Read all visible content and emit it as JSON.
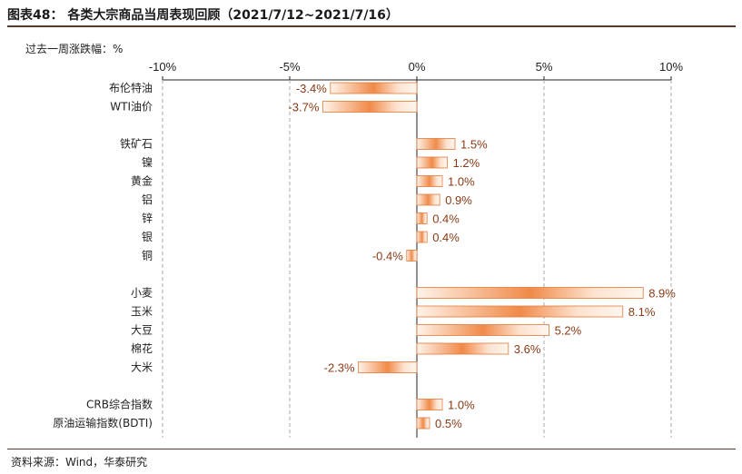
{
  "chart_data": {
    "type": "bar",
    "orientation": "horizontal",
    "title": "图表48： 各类大宗商品当周表现回顾（2021/7/12~2021/7/16）",
    "ylabel": "过去一周涨跌幅：%",
    "xlim": [
      -10,
      10
    ],
    "xticks": [
      -10,
      -5,
      0,
      5,
      10
    ],
    "xtick_labels": [
      "-10%",
      "-5%",
      "0%",
      "5%",
      "10%"
    ],
    "grid": "vertical-dashed",
    "rows": [
      {
        "label": "布伦特油",
        "value": -3.4,
        "value_label": "-3.4%"
      },
      {
        "label": "WTI油价",
        "value": -3.7,
        "value_label": "-3.7%"
      },
      null,
      {
        "label": "铁矿石",
        "value": 1.5,
        "value_label": "1.5%"
      },
      {
        "label": "镍",
        "value": 1.2,
        "value_label": "1.2%"
      },
      {
        "label": "黄金",
        "value": 1.0,
        "value_label": "1.0%"
      },
      {
        "label": "铝",
        "value": 0.9,
        "value_label": "0.9%"
      },
      {
        "label": "锌",
        "value": 0.4,
        "value_label": "0.4%"
      },
      {
        "label": "银",
        "value": 0.4,
        "value_label": "0.4%"
      },
      {
        "label": "铜",
        "value": -0.4,
        "value_label": "-0.4%"
      },
      null,
      {
        "label": "小麦",
        "value": 8.9,
        "value_label": "8.9%"
      },
      {
        "label": "玉米",
        "value": 8.1,
        "value_label": "8.1%"
      },
      {
        "label": "大豆",
        "value": 5.2,
        "value_label": "5.2%"
      },
      {
        "label": "棉花",
        "value": 3.6,
        "value_label": "3.6%"
      },
      {
        "label": "大米",
        "value": -2.3,
        "value_label": "-2.3%"
      },
      null,
      {
        "label": "CRB综合指数",
        "value": 1.0,
        "value_label": "1.0%"
      },
      {
        "label": "原油运输指数(BDTI)",
        "value": 0.5,
        "value_label": "0.5%"
      }
    ],
    "colors": {
      "bar_dark": "#f08a48",
      "bar_light": "#fff3ea",
      "bar_edge": "#e07a3a",
      "value_text": "#8a3a14"
    }
  },
  "source": "资料来源：Wind，华泰研究"
}
